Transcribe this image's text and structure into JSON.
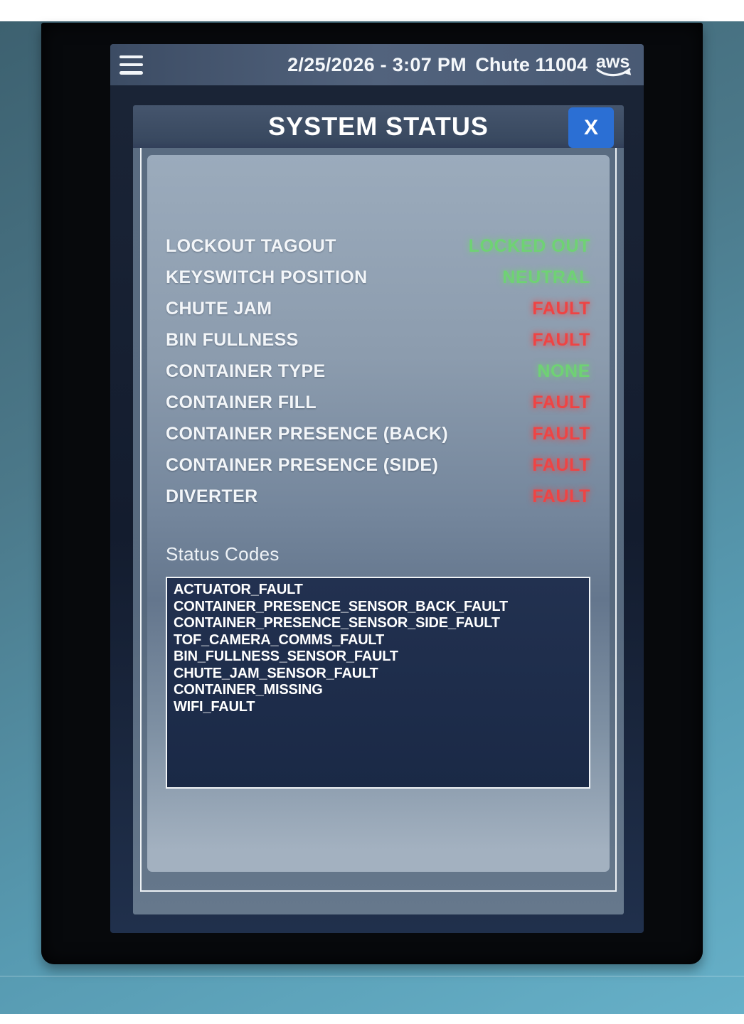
{
  "status_bar": {
    "datetime": "2/25/2026 - 3:07 PM",
    "chute_label": "Chute 11004",
    "logo_text": "aws"
  },
  "dialog": {
    "title": "SYSTEM STATUS",
    "close_label": "X",
    "rows": [
      {
        "label": "LOCKOUT TAGOUT",
        "value": "LOCKED OUT",
        "state": "ok"
      },
      {
        "label": "KEYSWITCH POSITION",
        "value": "NEUTRAL",
        "state": "ok"
      },
      {
        "label": "CHUTE JAM",
        "value": "FAULT",
        "state": "fault"
      },
      {
        "label": "BIN FULLNESS",
        "value": "FAULT",
        "state": "fault"
      },
      {
        "label": "CONTAINER TYPE",
        "value": "NONE",
        "state": "ok"
      },
      {
        "label": "CONTAINER FILL",
        "value": "FAULT",
        "state": "fault"
      },
      {
        "label": "CONTAINER PRESENCE (BACK)",
        "value": "FAULT",
        "state": "fault"
      },
      {
        "label": "CONTAINER PRESENCE (SIDE)",
        "value": "FAULT",
        "state": "fault"
      },
      {
        "label": "DIVERTER",
        "value": "FAULT",
        "state": "fault"
      }
    ],
    "status_codes_title": "Status Codes",
    "status_codes": [
      "ACTUATOR_FAULT",
      "CONTAINER_PRESENCE_SENSOR_BACK_FAULT",
      "CONTAINER_PRESENCE_SENSOR_SIDE_FAULT",
      "TOF_CAMERA_COMMS_FAULT",
      "BIN_FULLNESS_SENSOR_FAULT",
      "CHUTE_JAM_SENSOR_FAULT",
      "CONTAINER_MISSING",
      "WIFI_FAULT"
    ]
  },
  "colors": {
    "ok_green": "#6fd274",
    "fault_red": "#ee4444",
    "close_button_blue": "#2b6fd4"
  }
}
